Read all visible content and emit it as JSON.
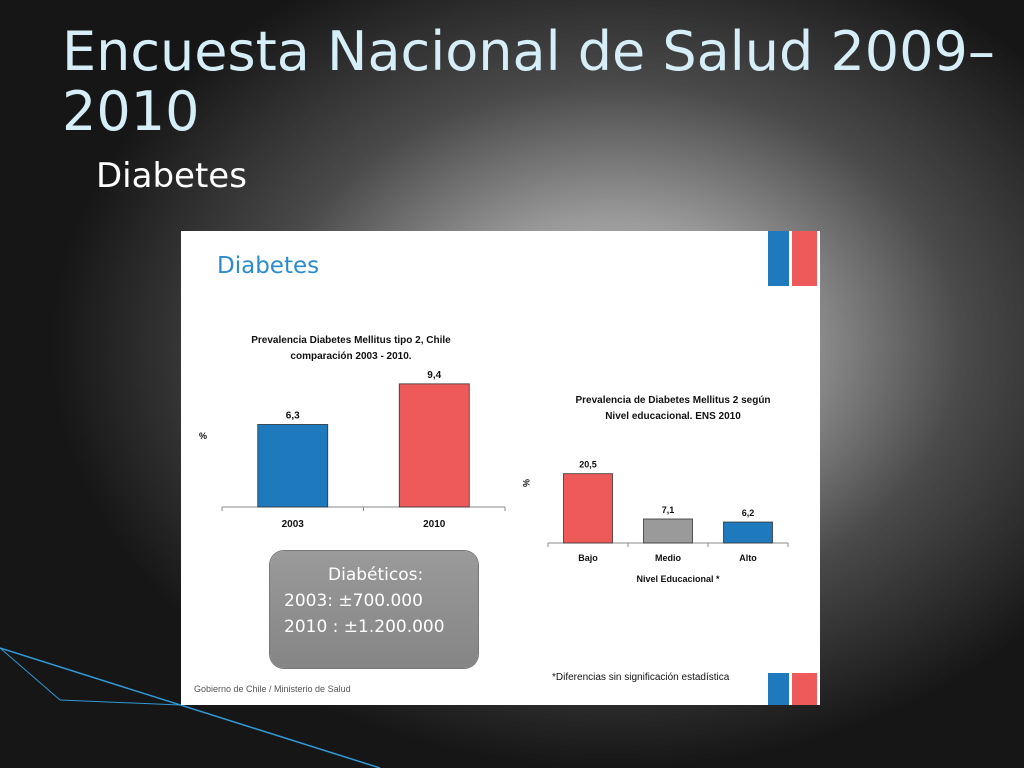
{
  "slide": {
    "title": "Encuesta Nacional de Salud 2009–2010",
    "subtitle": "Diabetes"
  },
  "panel": {
    "heading": "Diabetes",
    "info_box": {
      "heading": "Diabéticos:",
      "line1": "2003:    ±700.000",
      "line2": "2010 :  ±1.200.000"
    },
    "footnote": "*Diferencias sin significación estadística",
    "source": "Gobierno de Chile / Ministerio de Salud"
  },
  "colors": {
    "blue": "#1f79bd",
    "red": "#ee5a5a",
    "gray": "#9a9a9a",
    "title_cyan": "#d5eef7",
    "heading_blue": "#2a8ccf"
  },
  "chart_data": [
    {
      "type": "bar",
      "title_line1": "Prevalencia Diabetes Mellitus tipo 2, Chile",
      "title_line2": "comparación 2003 - 2010.",
      "ylabel": "%",
      "xlabel": "",
      "categories": [
        "2003",
        "2010"
      ],
      "values": [
        6.3,
        9.4
      ],
      "value_labels": [
        "6,3",
        "9,4"
      ],
      "bar_colors": [
        "#1f79bd",
        "#ee5a5a"
      ],
      "ylim": [
        0,
        10
      ],
      "grid": false
    },
    {
      "type": "bar",
      "title_line1": "Prevalencia de Diabetes Mellitus 2 según",
      "title_line2": "Nivel educacional. ENS 2010",
      "ylabel": "%",
      "xlabel": "Nivel Educacional *",
      "categories": [
        "Bajo",
        "Medio",
        "Alto"
      ],
      "values": [
        20.5,
        7.1,
        6.2
      ],
      "value_labels": [
        "20,5",
        "7,1",
        "6,2"
      ],
      "bar_colors": [
        "#ee5a5a",
        "#9a9a9a",
        "#1f79bd"
      ],
      "ylim": [
        0,
        21
      ],
      "grid": false
    }
  ]
}
